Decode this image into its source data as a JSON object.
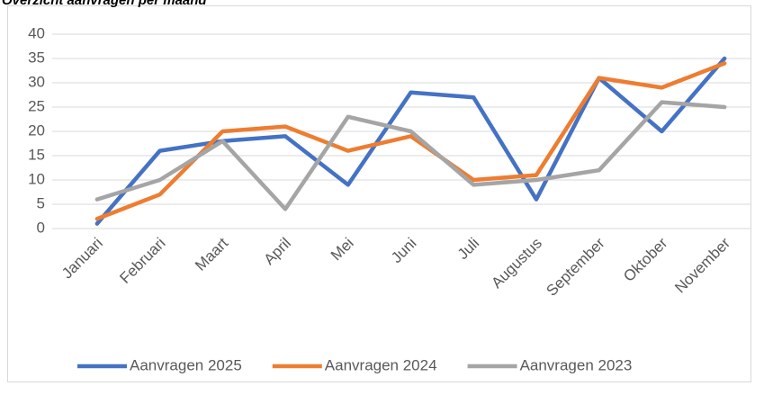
{
  "chart_data": {
    "type": "line",
    "title": "Overzicht aanvragen per maand",
    "categories": [
      "Januari",
      "Februari",
      "Maart",
      "April",
      "Mei",
      "Juni",
      "Juli",
      "Augustus",
      "September",
      "Oktober",
      "November"
    ],
    "series": [
      {
        "name": "Aanvragen 2025",
        "color": "#4472c4",
        "values": [
          1,
          16,
          18,
          19,
          9,
          28,
          27,
          6,
          31,
          20,
          35
        ]
      },
      {
        "name": "Aanvragen 2024",
        "color": "#ed7d31",
        "values": [
          2,
          7,
          20,
          21,
          16,
          19,
          10,
          11,
          31,
          29,
          34
        ]
      },
      {
        "name": "Aanvragen 2023",
        "color": "#a5a5a5",
        "values": [
          6,
          10,
          18,
          4,
          23,
          20,
          9,
          10,
          12,
          26,
          25
        ]
      }
    ],
    "ylim": [
      0,
      40
    ],
    "yticks": [
      0,
      5,
      10,
      15,
      20,
      25,
      30,
      35,
      40
    ],
    "grid": true,
    "legend": "bottom"
  }
}
